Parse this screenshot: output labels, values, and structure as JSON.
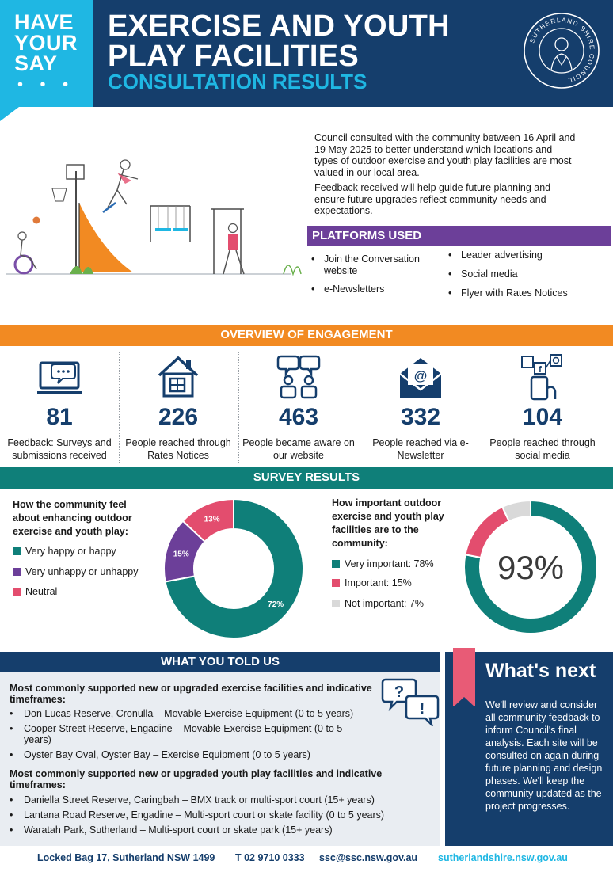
{
  "header": {
    "badge": [
      "HAVE",
      "YOUR",
      "SAY"
    ],
    "badge_dots": "• • •",
    "title_lines": [
      "EXERCISE AND YOUTH",
      "PLAY FACILITIES"
    ],
    "subtitle": "CONSULTATION RESULTS",
    "logo_text": "SUTHERLAND SHIRE COUNCIL"
  },
  "intro": {
    "paragraph1": "Council consulted with the community between 16 April and 19 May 2025 to better understand which locations and types of outdoor exercise and youth play facilities are most valued in our local area.",
    "paragraph2": "Feedback received will help guide future planning and ensure future upgrades reflect community needs and expectations."
  },
  "platforms": {
    "title": "PLATFORMS USED",
    "left": [
      "Join the Conversation website",
      "e-Newsletters"
    ],
    "right": [
      "Leader advertising",
      "Social media",
      "Flyer with Rates Notices"
    ]
  },
  "overview": {
    "title": "OVERVIEW OF ENGAGEMENT",
    "stats": [
      {
        "icon": "laptop-chat-icon",
        "value": "81",
        "label": "Feedback: Surveys and submissions received"
      },
      {
        "icon": "house-icon",
        "value": "226",
        "label": "People reached through Rates Notices"
      },
      {
        "icon": "people-chat-icon",
        "value": "463",
        "label": "People became aware on our website"
      },
      {
        "icon": "envelope-icon",
        "value": "332",
        "label": "People reached via e-Newsletter"
      },
      {
        "icon": "phone-social-icon",
        "value": "104",
        "label": "People reached through social media"
      }
    ]
  },
  "survey": {
    "title": "SURVEY RESULTS",
    "q1": "How the community feel about enhancing outdoor exercise and youth play:",
    "q2": "How important outdoor exercise and youth play facilities are to the community:"
  },
  "chart_data": [
    {
      "type": "pie",
      "donut": true,
      "labels": [
        "Very happy or happy",
        "Very unhappy or unhappy",
        "Neutral"
      ],
      "values": [
        72,
        15,
        13
      ],
      "value_labels": [
        "72%",
        "15%",
        "13%"
      ],
      "colors": [
        "#0f7f79",
        "#6c3f99",
        "#e34d6e"
      ],
      "legend": "left"
    },
    {
      "type": "pie",
      "donut": true,
      "labels": [
        "Very important: 78%",
        "Important: 15%",
        "Not important: 7%"
      ],
      "values": [
        78,
        15,
        7
      ],
      "colors": [
        "#0f7f79",
        "#e34d6e",
        "#d9d9d9"
      ],
      "center_label": "93%",
      "legend": "left"
    }
  ],
  "told": {
    "title": "WHAT YOU TOLD US",
    "heading1": "Most commonly supported new or upgraded exercise facilities and indicative timeframes:",
    "items1": [
      "Don Lucas Reserve, Cronulla – Movable Exercise Equipment (0 to 5 years)",
      "Cooper Street Reserve, Engadine – Movable Exercise Equipment (0 to 5 years)",
      "Oyster Bay Oval, Oyster Bay – Exercise Equipment (0 to 5 years)"
    ],
    "heading2": "Most commonly supported new or upgraded youth play facilities and indicative timeframes:",
    "items2": [
      "Daniella Street Reserve, Caringbah – BMX track or multi-sport court (15+ years)",
      "Lantana Road Reserve, Engadine – Multi-sport court or skate facility (0 to 5 years)",
      "Waratah Park, Sutherland – Multi-sport court or skate park (15+ years)"
    ]
  },
  "next": {
    "title": "What's next",
    "body": "We'll review and consider all community feedback to inform Council's final analysis. Each site will be consulted on again during future planning and design phases. We'll keep the community updated as the project progresses."
  },
  "footer": {
    "address": "Locked Bag 17, Sutherland NSW 1499",
    "phone": "T 02 9710 0333",
    "email": "ssc@ssc.nsw.gov.au",
    "website": "sutherlandshire.nsw.gov.au"
  }
}
